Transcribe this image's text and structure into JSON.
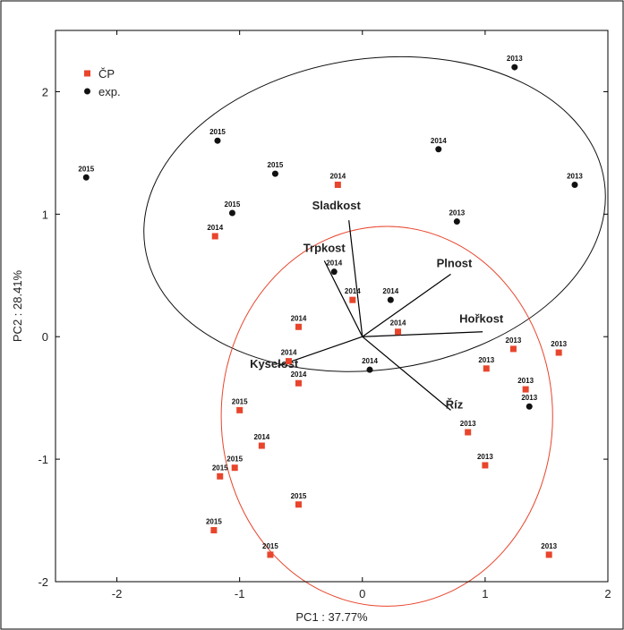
{
  "chart_data": {
    "type": "scatter",
    "xlabel": "PC1 : 37.77%",
    "ylabel": "PC2 : 28.41%",
    "xlim": [
      -2.5,
      2
    ],
    "ylim": [
      -2,
      2.5
    ],
    "xticks": [
      -2,
      -1,
      0,
      1,
      2
    ],
    "yticks": [
      -2,
      -1,
      0,
      1,
      2
    ],
    "grid": false,
    "legend_position": "top-left",
    "colors": {
      "cp": "#e8452c",
      "exp": "#111111",
      "axis": "#000000"
    },
    "legend": [
      {
        "key": "cp",
        "label": "ČP",
        "marker": "square"
      },
      {
        "key": "exp",
        "label": "exp.",
        "marker": "circle"
      }
    ],
    "series": [
      {
        "name": "ČP",
        "key": "cp",
        "marker": "square",
        "points": [
          {
            "x": -0.2,
            "y": 1.24,
            "label": "2014"
          },
          {
            "x": -1.2,
            "y": 0.82,
            "label": "2014"
          },
          {
            "x": -0.08,
            "y": 0.3,
            "label": "2014"
          },
          {
            "x": -0.52,
            "y": 0.08,
            "label": "2014"
          },
          {
            "x": 0.29,
            "y": 0.04,
            "label": "2014"
          },
          {
            "x": -0.6,
            "y": -0.2,
            "label": "2014"
          },
          {
            "x": -0.52,
            "y": -0.38,
            "label": "2014"
          },
          {
            "x": -1.0,
            "y": -0.6,
            "label": "2015"
          },
          {
            "x": -0.82,
            "y": -0.89,
            "label": "2014"
          },
          {
            "x": -1.04,
            "y": -1.07,
            "label": "2015"
          },
          {
            "x": -1.16,
            "y": -1.14,
            "label": "2015"
          },
          {
            "x": -0.52,
            "y": -1.37,
            "label": "2015"
          },
          {
            "x": -1.21,
            "y": -1.58,
            "label": "2015"
          },
          {
            "x": -0.75,
            "y": -1.78,
            "label": "2015"
          },
          {
            "x": 1.01,
            "y": -0.26,
            "label": "2013"
          },
          {
            "x": 1.23,
            "y": -0.1,
            "label": "2013"
          },
          {
            "x": 1.6,
            "y": -0.13,
            "label": "2013"
          },
          {
            "x": 1.33,
            "y": -0.43,
            "label": "2013"
          },
          {
            "x": 0.86,
            "y": -0.78,
            "label": "2013"
          },
          {
            "x": 1.0,
            "y": -1.05,
            "label": "2013"
          },
          {
            "x": 1.52,
            "y": -1.78,
            "label": "2013"
          }
        ]
      },
      {
        "name": "exp.",
        "key": "exp",
        "marker": "circle",
        "points": [
          {
            "x": 1.24,
            "y": 2.2,
            "label": "2013"
          },
          {
            "x": 0.62,
            "y": 1.53,
            "label": "2014"
          },
          {
            "x": 1.73,
            "y": 1.24,
            "label": "2013"
          },
          {
            "x": 0.77,
            "y": 0.94,
            "label": "2013"
          },
          {
            "x": -1.18,
            "y": 1.6,
            "label": "2015"
          },
          {
            "x": -0.71,
            "y": 1.33,
            "label": "2015"
          },
          {
            "x": -2.25,
            "y": 1.3,
            "label": "2015"
          },
          {
            "x": -1.06,
            "y": 1.01,
            "label": "2015"
          },
          {
            "x": -0.23,
            "y": 0.53,
            "label": "2014"
          },
          {
            "x": 0.23,
            "y": 0.3,
            "label": "2014"
          },
          {
            "x": 0.06,
            "y": -0.27,
            "label": "2014"
          },
          {
            "x": 1.36,
            "y": -0.57,
            "label": "2013"
          }
        ]
      }
    ],
    "vectors": [
      {
        "label": "Sladkost",
        "x": -0.11,
        "y": 0.95
      },
      {
        "label": "Trpkost",
        "x": -0.31,
        "y": 0.62
      },
      {
        "label": "Plnost",
        "x": 0.72,
        "y": 0.51
      },
      {
        "label": "Hořkost",
        "x": 0.98,
        "y": 0.04
      },
      {
        "label": "Kyselost",
        "x": -0.69,
        "y": -0.24
      },
      {
        "label": "Říz",
        "x": 0.72,
        "y": -0.6
      }
    ],
    "ellipses": [
      {
        "key": "exp",
        "cx": 0.1,
        "cy": 1.0,
        "rx": 1.89,
        "ry": 1.27,
        "rotation_deg": -8
      },
      {
        "key": "cp",
        "cx": 0.2,
        "cy": -0.65,
        "rx": 1.35,
        "ry": 1.55,
        "rotation_deg": 0
      }
    ]
  }
}
